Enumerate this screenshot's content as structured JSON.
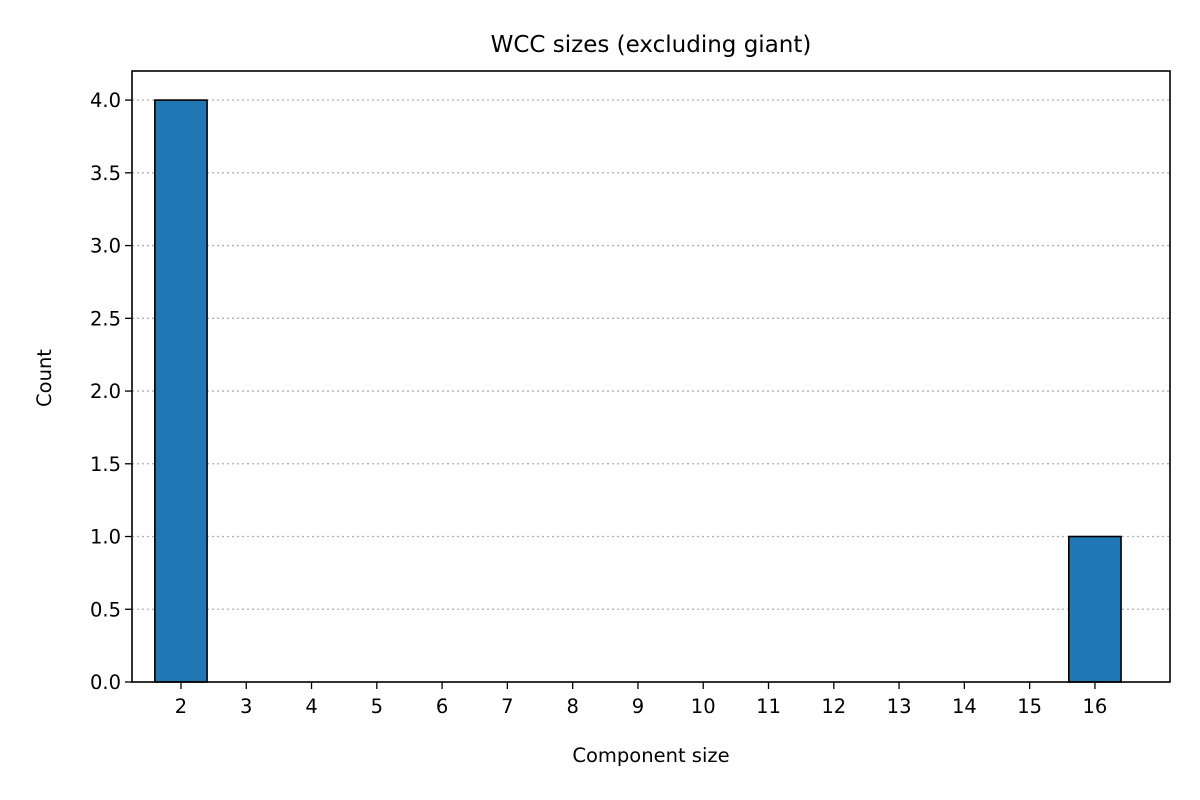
{
  "chart_data": {
    "type": "bar",
    "title": "WCC sizes (excluding giant)",
    "xlabel": "Component size",
    "ylabel": "Count",
    "categories": [
      2,
      3,
      4,
      5,
      6,
      7,
      8,
      9,
      10,
      11,
      12,
      13,
      14,
      15,
      16
    ],
    "values": [
      4,
      0,
      0,
      0,
      0,
      0,
      0,
      0,
      0,
      0,
      0,
      0,
      0,
      0,
      1
    ],
    "xlim": [
      1.25,
      17.15
    ],
    "ylim": [
      0,
      4.2
    ],
    "yticks": [
      "0.0",
      "0.5",
      "1.0",
      "1.5",
      "2.0",
      "2.5",
      "3.0",
      "3.5",
      "4.0"
    ],
    "grid": "y-dotted",
    "legend": "none",
    "colors": {
      "bar": "#1f77b4",
      "edge": "#000000",
      "grid": "#b0b0b0"
    }
  }
}
